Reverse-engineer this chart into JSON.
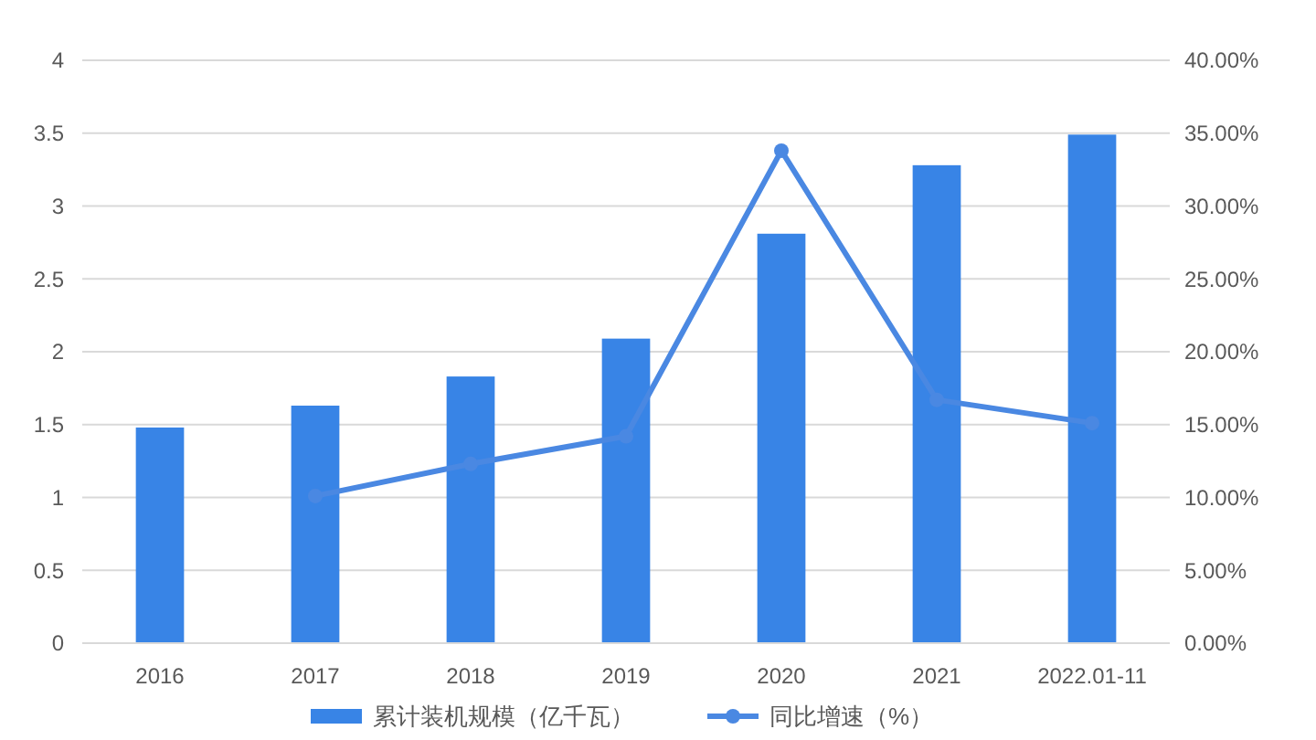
{
  "chart_data": {
    "type": "bar",
    "categories": [
      "2016",
      "2017",
      "2018",
      "2019",
      "2020",
      "2021",
      "2022.01-11"
    ],
    "series": [
      {
        "name": "累计装机规模（亿千瓦）",
        "color": "#3884e6",
        "values": [
          1.48,
          1.63,
          1.83,
          2.09,
          2.81,
          3.28,
          3.49
        ]
      },
      {
        "name": "同比增速（%）",
        "type": "line",
        "axis": "y2",
        "color": "#4a88e2",
        "marker": "circle",
        "values": [
          null,
          10.1,
          12.3,
          14.2,
          33.8,
          16.7,
          15.1
        ]
      }
    ],
    "ylim": [
      0,
      4
    ],
    "yticks": [
      0,
      0.5,
      1,
      1.5,
      2,
      2.5,
      3,
      3.5,
      4
    ],
    "y2lim": [
      0,
      40
    ],
    "y2ticks": [
      {
        "value": 0,
        "label": "0.00%"
      },
      {
        "value": 5,
        "label": "5.00%"
      },
      {
        "value": 10,
        "label": "10.00%"
      },
      {
        "value": 15,
        "label": "15.00%"
      },
      {
        "value": 20,
        "label": "20.00%"
      },
      {
        "value": 25,
        "label": "25.00%"
      },
      {
        "value": 30,
        "label": "30.00%"
      },
      {
        "value": 35,
        "label": "35.00%"
      },
      {
        "value": 40,
        "label": "40.00%"
      }
    ],
    "grid": "y",
    "legend": "bottom"
  }
}
